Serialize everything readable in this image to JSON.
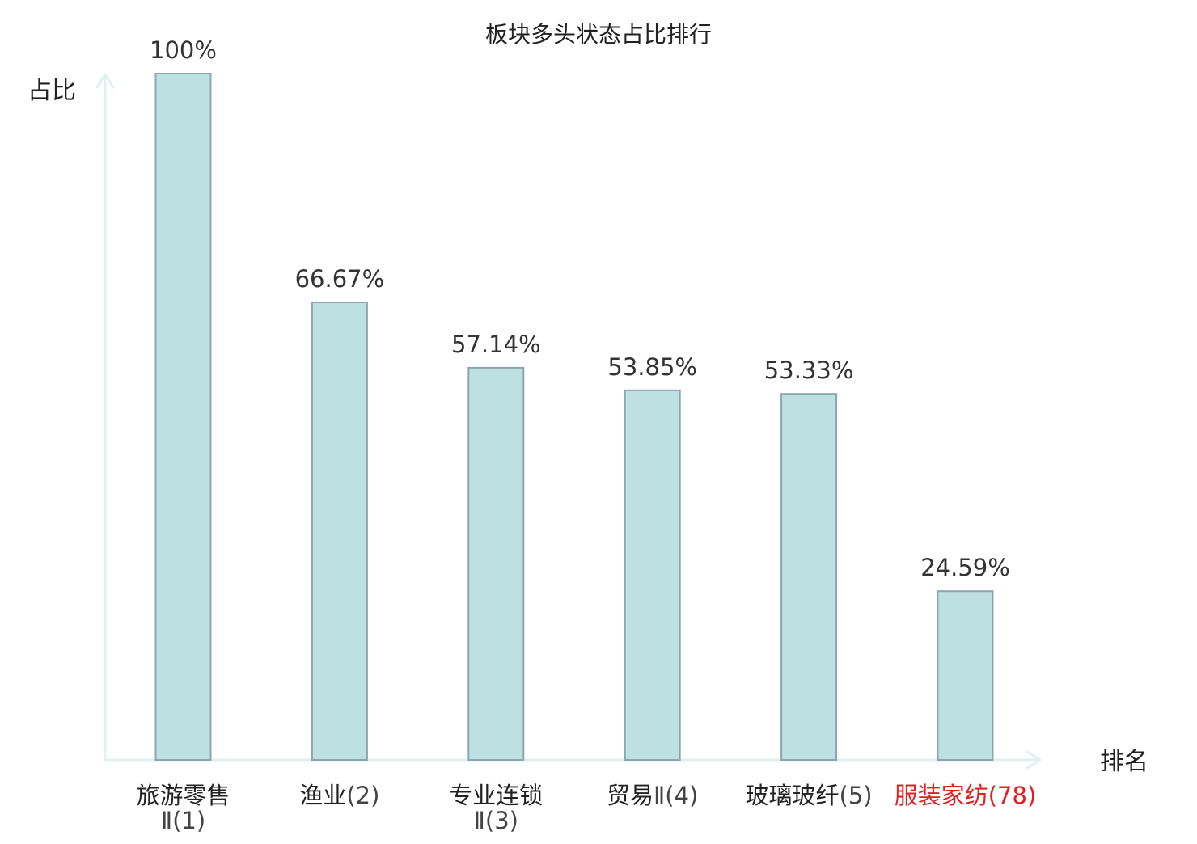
{
  "chart_data": {
    "type": "bar",
    "title": "板块多头状态占比排行",
    "ylabel": "占比",
    "xlabel": "排名",
    "ylim": [
      0,
      100
    ],
    "grid": false,
    "categories": [
      {
        "name": "旅游零售",
        "rank": "Ⅱ(1)",
        "highlight": false
      },
      {
        "name": "渔业",
        "rank": "(2)",
        "highlight": false
      },
      {
        "name": "专业连锁",
        "rank": "Ⅱ(3)",
        "highlight": false
      },
      {
        "name": "贸易",
        "rank": "Ⅱ(4)",
        "highlight": false
      },
      {
        "name": "玻璃玻纤",
        "rank": "(5)",
        "highlight": false
      },
      {
        "name": "服装家纺",
        "rank": "(78)",
        "highlight": true
      }
    ],
    "values": [
      100,
      66.67,
      57.14,
      53.85,
      53.33,
      24.59
    ],
    "value_labels": [
      "100%",
      "66.67%",
      "57.14%",
      "53.85%",
      "53.33%",
      "24.59%"
    ]
  },
  "colors": {
    "bar_fill": "#bde0e3",
    "bar_stroke": "#8aa7ab",
    "axis": "#dff1ee",
    "text": "#222222",
    "rank_text": "#444444",
    "highlight": "#e02020"
  }
}
